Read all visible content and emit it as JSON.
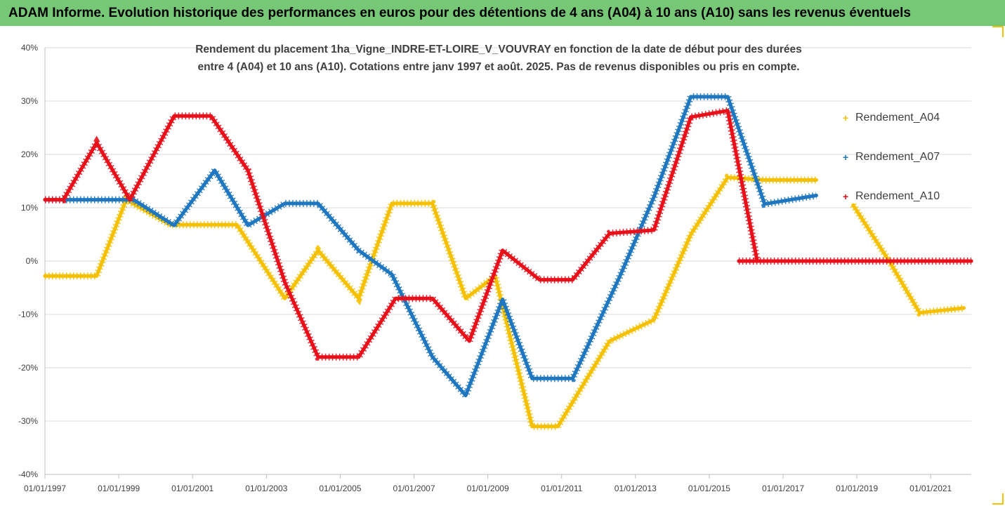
{
  "title": "ADAM Informe. Evolution historique des performances en euros pour des détentions de 4 ans (A04) à 10 ans (A10) sans les revenus éventuels",
  "chart_data": {
    "type": "scatter",
    "subtitle_lines": [
      "Rendement du placement 1ha_Vigne_INDRE-ET-LOIRE_V_VOUVRAY en fonction de la date de début pour des durées",
      "entre 4 (A04) et 10 ans (A10). Cotations entre janv 1997 et août. 2025. Pas de revenus disponibles ou pris en compte."
    ],
    "x_ticks": [
      "01/01/1997",
      "01/01/1999",
      "01/01/2001",
      "01/01/2003",
      "01/01/2005",
      "01/01/2007",
      "01/01/2009",
      "01/01/2011",
      "01/01/2013",
      "01/01/2015",
      "01/01/2017",
      "01/01/2019",
      "01/01/2021"
    ],
    "xlim": [
      1997.0,
      2022.1
    ],
    "y_ticks": [
      "40%",
      "30%",
      "20%",
      "10%",
      "0%",
      "-10%",
      "-20%",
      "-30%",
      "-40%"
    ],
    "ylim": [
      -40,
      40
    ],
    "grid": "horizontal",
    "legend_position": "right",
    "series": [
      {
        "name": "Rendement_A04",
        "color": "#f5c000",
        "points": [
          [
            1997.0,
            -2.8
          ],
          [
            1998.4,
            -2.8
          ],
          [
            1999.2,
            11.5
          ],
          [
            2000.4,
            6.8
          ],
          [
            2002.2,
            6.8
          ],
          [
            2003.5,
            -7.0
          ],
          [
            2004.4,
            2.0
          ],
          [
            2005.5,
            -7.0
          ],
          [
            2006.4,
            10.8
          ],
          [
            2007.5,
            10.8
          ],
          [
            2008.4,
            -7.0
          ],
          [
            2009.2,
            -2.8
          ],
          [
            2010.2,
            -31.0
          ],
          [
            2010.9,
            -31.0
          ],
          [
            2012.3,
            -15.0
          ],
          [
            2013.5,
            -11.0
          ],
          [
            2014.5,
            5.0
          ],
          [
            2015.5,
            15.7
          ],
          [
            2016.5,
            15.2
          ],
          [
            2017.9,
            15.2
          ],
          [
            null,
            null
          ],
          [
            2018.9,
            10.5
          ],
          [
            2019.9,
            -0.3
          ],
          [
            2020.7,
            -9.7
          ],
          [
            2021.9,
            -8.8
          ]
        ]
      },
      {
        "name": "Rendement_A07",
        "color": "#1f77c0",
        "points": [
          [
            1997.0,
            11.5
          ],
          [
            1999.4,
            11.5
          ],
          [
            2000.5,
            6.7
          ],
          [
            2001.6,
            17.0
          ],
          [
            2002.5,
            6.7
          ],
          [
            2003.5,
            10.8
          ],
          [
            2004.4,
            10.8
          ],
          [
            2005.5,
            2.0
          ],
          [
            2006.4,
            -2.5
          ],
          [
            2007.5,
            -18.0
          ],
          [
            2008.4,
            -25.2
          ],
          [
            2009.4,
            -7.2
          ],
          [
            2010.2,
            -22.0
          ],
          [
            2011.3,
            -22.0
          ],
          [
            2012.6,
            -2.5
          ],
          [
            2013.5,
            12.0
          ],
          [
            2014.5,
            30.8
          ],
          [
            2015.5,
            30.8
          ],
          [
            2016.5,
            10.7
          ],
          [
            2017.9,
            12.3
          ]
        ]
      },
      {
        "name": "Rendement_A10",
        "color": "#e8101a",
        "points": [
          [
            1997.0,
            11.5
          ],
          [
            1997.5,
            11.5
          ],
          [
            1998.4,
            22.2
          ],
          [
            1999.3,
            11.5
          ],
          [
            2000.5,
            27.2
          ],
          [
            2001.5,
            27.2
          ],
          [
            2002.5,
            17.0
          ],
          [
            2003.5,
            -4.0
          ],
          [
            2004.4,
            -18.0
          ],
          [
            2005.5,
            -18.0
          ],
          [
            2006.5,
            -7.0
          ],
          [
            2007.5,
            -7.0
          ],
          [
            2008.5,
            -15.0
          ],
          [
            2009.4,
            2.0
          ],
          [
            2010.4,
            -3.5
          ],
          [
            2011.3,
            -3.5
          ],
          [
            2012.3,
            5.2
          ],
          [
            2013.5,
            5.8
          ],
          [
            2014.5,
            27.0
          ],
          [
            2015.5,
            28.2
          ],
          [
            2016.3,
            0.0
          ],
          [
            null,
            null
          ],
          [
            2015.8,
            0.0
          ],
          [
            2022.1,
            0.0
          ]
        ]
      }
    ]
  }
}
